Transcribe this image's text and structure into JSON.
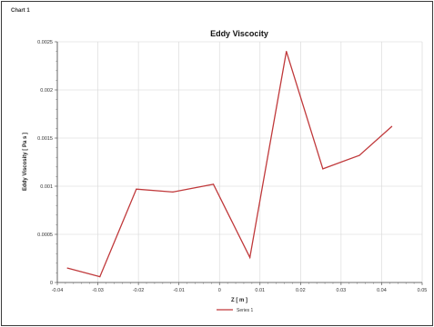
{
  "header": {
    "label": "Chart 1"
  },
  "chart_data": {
    "type": "line",
    "title": "Eddy Viscocity",
    "xlabel": "Z [ m ]",
    "ylabel": "Eddy Viscosity [ Pa s ]",
    "xlim": [
      -0.04,
      0.05
    ],
    "ylim": [
      0,
      0.0025
    ],
    "xticks": [
      -0.04,
      -0.03,
      -0.02,
      -0.01,
      0,
      0.01,
      0.02,
      0.03,
      0.04,
      0.05
    ],
    "xtick_labels": [
      "-0.04",
      "-0.03",
      "-0.02",
      "-0.01",
      "0",
      "0.01",
      "0.02",
      "0.03",
      "0.04",
      "0.05"
    ],
    "yticks": [
      0,
      0.0005,
      0.001,
      0.0015,
      0.002,
      0.0025
    ],
    "ytick_labels": [
      "0",
      "0.0005",
      "0.001",
      "0.0015",
      "0.002",
      "0.0025"
    ],
    "grid": true,
    "legend": "bottom-center",
    "series": [
      {
        "name": "Series 1",
        "color": "#c0393b",
        "x": [
          -0.0375,
          -0.0295,
          -0.0205,
          -0.0115,
          -0.0015,
          0.0075,
          0.0165,
          0.0255,
          0.0345,
          0.0425
        ],
        "y": [
          0.00015,
          6e-05,
          0.00097,
          0.00094,
          0.00102,
          0.00026,
          0.0024,
          0.00118,
          0.00132,
          0.00162
        ]
      }
    ]
  }
}
